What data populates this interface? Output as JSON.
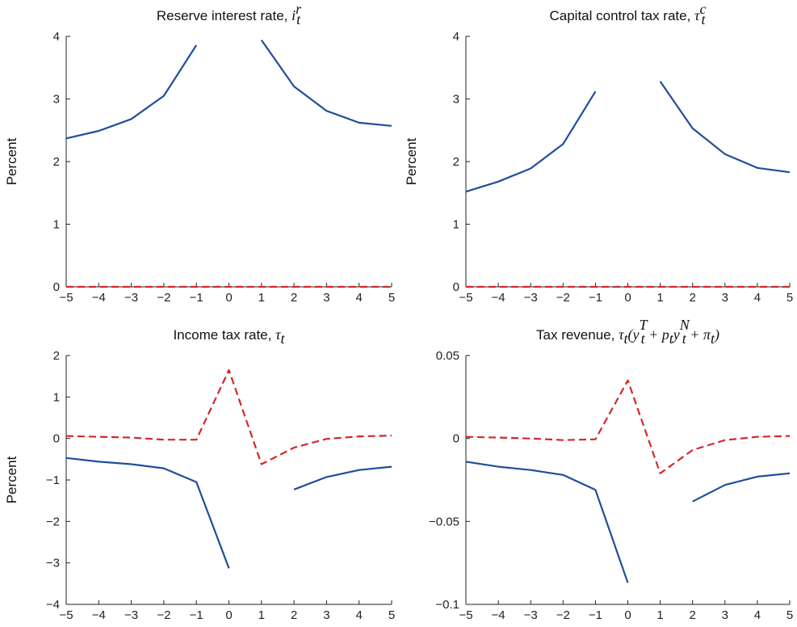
{
  "chart_data": [
    {
      "type": "line",
      "title": "Reserve interest rate,",
      "title_math": "i",
      "title_math_sup": "r",
      "title_math_sub": "t",
      "xlabel": "",
      "ylabel": "Percent",
      "xlim": [
        -5,
        5
      ],
      "ylim": [
        0,
        4
      ],
      "xticks": [
        "−5",
        "−4",
        "−3",
        "−2",
        "−1",
        "0",
        "1",
        "2",
        "3",
        "4",
        "5"
      ],
      "yticks": [
        "0",
        "1",
        "2",
        "3",
        "4"
      ],
      "series": [
        {
          "color": "#1f4e9c",
          "style": "solid",
          "segments": [
            {
              "x": [
                -5,
                -4,
                -3,
                -2,
                -1
              ],
              "y": [
                2.37,
                2.49,
                2.68,
                3.05,
                3.86
              ]
            },
            {
              "x": [
                1,
                2,
                3,
                4,
                5
              ],
              "y": [
                3.94,
                3.2,
                2.81,
                2.62,
                2.57
              ]
            }
          ]
        },
        {
          "color": "#d62728",
          "style": "dashed",
          "segments": [
            {
              "x": [
                -5,
                -4,
                -3,
                -2,
                -1,
                0,
                1,
                2,
                3,
                4,
                5
              ],
              "y": [
                0,
                0,
                0,
                0,
                0,
                0,
                0,
                0,
                0,
                0,
                0
              ]
            }
          ]
        }
      ]
    },
    {
      "type": "line",
      "title": "Capital control tax rate,",
      "title_math": "τ",
      "title_math_sup": "c",
      "title_math_sub": "t",
      "xlabel": "",
      "ylabel": "Percent",
      "xlim": [
        -5,
        5
      ],
      "ylim": [
        0,
        4
      ],
      "xticks": [
        "−5",
        "−4",
        "−3",
        "−2",
        "−1",
        "0",
        "1",
        "2",
        "3",
        "4",
        "5"
      ],
      "yticks": [
        "0",
        "1",
        "2",
        "3",
        "4"
      ],
      "series": [
        {
          "color": "#1f4e9c",
          "style": "solid",
          "segments": [
            {
              "x": [
                -5,
                -4,
                -3,
                -2,
                -1
              ],
              "y": [
                1.52,
                1.68,
                1.89,
                2.28,
                3.12
              ]
            },
            {
              "x": [
                1,
                2,
                3,
                4,
                5
              ],
              "y": [
                3.28,
                2.53,
                2.12,
                1.9,
                1.83
              ]
            }
          ]
        },
        {
          "color": "#d62728",
          "style": "dashed",
          "segments": [
            {
              "x": [
                -5,
                -4,
                -3,
                -2,
                -1,
                0,
                1,
                2,
                3,
                4,
                5
              ],
              "y": [
                0,
                0,
                0,
                0,
                0,
                0,
                0,
                0,
                0,
                0,
                0
              ]
            }
          ]
        }
      ]
    },
    {
      "type": "line",
      "title": "Income tax rate,",
      "title_math": "τ",
      "title_math_sup": "",
      "title_math_sub": "t",
      "xlabel": "",
      "ylabel": "Percent",
      "xlim": [
        -5,
        5
      ],
      "ylim": [
        -4,
        2
      ],
      "xticks": [
        "−5",
        "−4",
        "−3",
        "−2",
        "−1",
        "0",
        "1",
        "2",
        "3",
        "4",
        "5"
      ],
      "yticks": [
        "−4",
        "−3",
        "−2",
        "−1",
        "0",
        "1",
        "2"
      ],
      "series": [
        {
          "color": "#1f4e9c",
          "style": "solid",
          "segments": [
            {
              "x": [
                -5,
                -4,
                -3,
                -2,
                -1,
                0
              ],
              "y": [
                -0.47,
                -0.56,
                -0.62,
                -0.72,
                -1.05,
                -3.13
              ]
            },
            {
              "x": [
                2,
                3,
                4,
                5
              ],
              "y": [
                -1.23,
                -0.93,
                -0.76,
                -0.68
              ]
            }
          ]
        },
        {
          "color": "#d62728",
          "style": "dashed",
          "segments": [
            {
              "x": [
                -5,
                -4,
                -3,
                -2,
                -1,
                0,
                1,
                2,
                3,
                4,
                5
              ],
              "y": [
                0.06,
                0.04,
                0.02,
                -0.03,
                -0.03,
                1.65,
                -0.62,
                -0.22,
                -0.01,
                0.05,
                0.07
              ]
            }
          ]
        }
      ]
    },
    {
      "type": "line",
      "title": "Tax revenue,",
      "title_math": "τt(ytT + ptytN + πt)",
      "title_math_sup": "",
      "title_math_sub": "",
      "xlabel": "",
      "ylabel": "",
      "xlim": [
        -5,
        5
      ],
      "ylim": [
        -0.1,
        0.05
      ],
      "xticks": [
        "−5",
        "−4",
        "−3",
        "−2",
        "−1",
        "0",
        "1",
        "2",
        "3",
        "4",
        "5"
      ],
      "yticks": [
        "−0.1",
        "−0.05",
        "0",
        "0.05"
      ],
      "series": [
        {
          "color": "#1f4e9c",
          "style": "solid",
          "segments": [
            {
              "x": [
                -5,
                -4,
                -3,
                -2,
                -1,
                0
              ],
              "y": [
                -0.014,
                -0.017,
                -0.019,
                -0.022,
                -0.031,
                -0.087
              ]
            },
            {
              "x": [
                2,
                3,
                4,
                5
              ],
              "y": [
                -0.038,
                -0.028,
                -0.023,
                -0.021
              ]
            }
          ]
        },
        {
          "color": "#d62728",
          "style": "dashed",
          "segments": [
            {
              "x": [
                -5,
                -4,
                -3,
                -2,
                -1,
                0,
                1,
                2,
                3,
                4,
                5
              ],
              "y": [
                0.001,
                0.0005,
                0,
                -0.001,
                -0.0005,
                0.035,
                -0.021,
                -0.007,
                -0.001,
                0.001,
                0.0015
              ]
            }
          ]
        }
      ]
    }
  ]
}
